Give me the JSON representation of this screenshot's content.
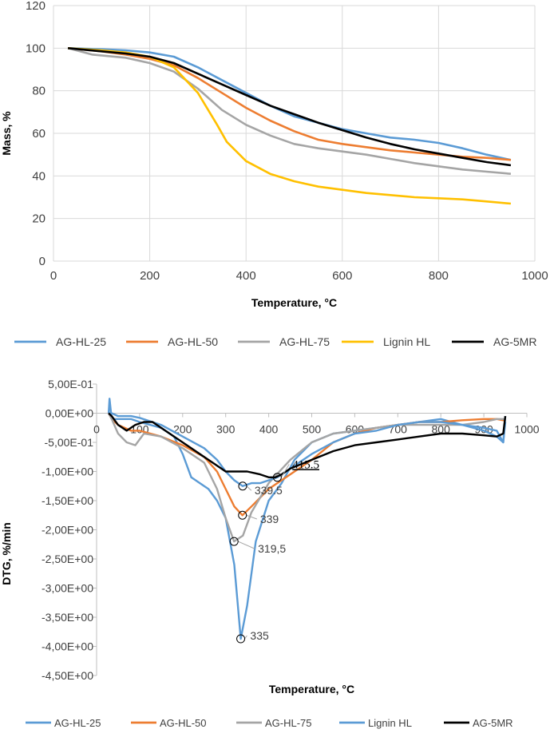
{
  "chart_data": [
    {
      "type": "line",
      "xlabel": "Temperature, °C",
      "ylabel": "Mass, %",
      "xlim": [
        0,
        1000
      ],
      "ylim": [
        0,
        120
      ],
      "x_ticks": [
        "0",
        "200",
        "400",
        "600",
        "800",
        "1000"
      ],
      "y_ticks": [
        "0",
        "20",
        "40",
        "60",
        "80",
        "100",
        "120"
      ],
      "grid": true,
      "legend_position": "bottom",
      "series": [
        {
          "name": "AG-HL-25",
          "color": "#5B9BD5",
          "x": [
            30,
            100,
            150,
            200,
            250,
            300,
            350,
            400,
            450,
            500,
            550,
            600,
            650,
            700,
            750,
            800,
            850,
            900,
            950
          ],
          "y": [
            100,
            99.5,
            99,
            98,
            96,
            91,
            85,
            79,
            73,
            68,
            65,
            62,
            60,
            58,
            57,
            55.5,
            53,
            50,
            47.5
          ]
        },
        {
          "name": "AG-HL-50",
          "color": "#ED7D31",
          "x": [
            30,
            100,
            150,
            200,
            250,
            300,
            350,
            400,
            450,
            500,
            550,
            600,
            650,
            700,
            750,
            800,
            850,
            900,
            950
          ],
          "y": [
            100,
            98.5,
            97,
            95,
            92,
            86,
            79,
            72,
            66,
            61,
            57,
            55,
            53.5,
            52,
            51,
            50,
            49,
            48.5,
            47.5
          ]
        },
        {
          "name": "AG-HL-75",
          "color": "#A5A5A5",
          "x": [
            30,
            80,
            150,
            200,
            250,
            300,
            350,
            400,
            450,
            500,
            550,
            600,
            650,
            700,
            750,
            800,
            850,
            900,
            950
          ],
          "y": [
            100,
            97,
            95.5,
            93,
            89,
            81,
            71,
            64,
            59,
            55,
            53,
            51.5,
            50,
            48,
            46,
            44.5,
            43,
            42,
            41
          ]
        },
        {
          "name": "Lignin HL",
          "color": "#FFC000",
          "x": [
            30,
            100,
            150,
            200,
            250,
            300,
            340,
            360,
            400,
            450,
            500,
            550,
            600,
            650,
            700,
            750,
            800,
            850,
            900,
            950
          ],
          "y": [
            100,
            99,
            98,
            96,
            91,
            79,
            64,
            56,
            47,
            41,
            37.5,
            35,
            33.5,
            32,
            31,
            30,
            29.5,
            29,
            28,
            27
          ]
        },
        {
          "name": "AG-5MR",
          "color": "#000000",
          "x": [
            30,
            100,
            150,
            200,
            250,
            300,
            350,
            400,
            450,
            500,
            550,
            600,
            650,
            700,
            750,
            800,
            850,
            900,
            950
          ],
          "y": [
            100,
            98.5,
            97.5,
            96,
            93,
            88,
            83,
            78,
            73,
            69,
            65,
            61.5,
            58,
            55,
            52.5,
            50.5,
            48.5,
            46.5,
            45
          ]
        }
      ]
    },
    {
      "type": "line",
      "xlabel": "Temperature, °C",
      "ylabel": "DTG, %/min",
      "xlim": [
        0,
        1000
      ],
      "ylim": [
        -4.5,
        0.5
      ],
      "x_ticks": [
        "0",
        "100",
        "200",
        "300",
        "400",
        "500",
        "600",
        "700",
        "800",
        "900",
        "1000"
      ],
      "y_ticks": [
        "5,00E-01",
        "0,00E+00",
        "-5,00E-01",
        "-1,00E+00",
        "-1,50E+00",
        "-2,00E+00",
        "-2,50E+00",
        "-3,00E+00",
        "-3,50E+00",
        "-4,00E+00",
        "-4,50E+00"
      ],
      "grid": false,
      "legend_position": "bottom",
      "annotations": [
        {
          "text": "415.5",
          "x": 420,
          "y": -1.1
        },
        {
          "text": "339.5",
          "x": 339.5,
          "y": -1.25
        },
        {
          "text": "339",
          "x": 339,
          "y": -1.75
        },
        {
          "text": "319,5",
          "x": 319.5,
          "y": -2.2
        },
        {
          "text": "335",
          "x": 335,
          "y": -3.87
        }
      ],
      "series": [
        {
          "name": "AG-HL-25",
          "color": "#5B9BD5",
          "x": [
            28,
            30,
            35,
            50,
            80,
            100,
            150,
            180,
            200,
            220,
            240,
            260,
            280,
            300,
            320,
            335,
            350,
            370,
            400,
            430,
            460,
            500,
            550,
            600,
            650,
            700,
            750,
            800,
            850,
            900,
            930,
            945,
            950
          ],
          "y": [
            0.0,
            0.25,
            -0.1,
            -0.1,
            -0.1,
            -0.15,
            -0.25,
            -0.4,
            -0.7,
            -1.1,
            -1.2,
            -1.3,
            -1.5,
            -1.8,
            -2.6,
            -3.87,
            -3.3,
            -2.2,
            -1.5,
            -1.2,
            -0.8,
            -0.5,
            -0.35,
            -0.3,
            -0.25,
            -0.2,
            -0.15,
            -0.1,
            -0.2,
            -0.3,
            -0.4,
            -0.5,
            -0.15
          ]
        },
        {
          "name": "AG-HL-50",
          "color": "#ED7D31",
          "x": [
            28,
            35,
            50,
            80,
            100,
            150,
            200,
            250,
            280,
            300,
            320,
            339,
            360,
            400,
            450,
            500,
            550,
            600,
            650,
            700,
            750,
            800,
            850,
            900,
            930,
            945,
            950
          ],
          "y": [
            0.0,
            -0.1,
            -0.2,
            -0.3,
            -0.3,
            -0.4,
            -0.55,
            -0.75,
            -1.0,
            -1.3,
            -1.6,
            -1.75,
            -1.6,
            -1.3,
            -1.05,
            -0.8,
            -0.5,
            -0.35,
            -0.25,
            -0.2,
            -0.15,
            -0.15,
            -0.12,
            -0.1,
            -0.1,
            -0.12,
            -0.1
          ]
        },
        {
          "name": "AG-HL-75",
          "color": "#A5A5A5",
          "x": [
            28,
            35,
            50,
            70,
            90,
            110,
            150,
            200,
            250,
            280,
            300,
            319.5,
            340,
            360,
            400,
            450,
            500,
            550,
            600,
            650,
            700,
            750,
            800,
            850,
            900,
            930,
            945,
            950
          ],
          "y": [
            0.0,
            -0.1,
            -0.35,
            -0.5,
            -0.55,
            -0.35,
            -0.4,
            -0.6,
            -0.85,
            -1.3,
            -1.8,
            -2.2,
            -2.1,
            -1.7,
            -1.2,
            -0.8,
            -0.5,
            -0.35,
            -0.3,
            -0.25,
            -0.2,
            -0.2,
            -0.2,
            -0.2,
            -0.15,
            -0.1,
            -0.1,
            -0.1
          ]
        },
        {
          "name": "Lignin HL",
          "color": "#5B9BD5",
          "x": [
            28,
            35,
            50,
            80,
            100,
            150,
            200,
            250,
            280,
            300,
            320,
            339.5,
            360,
            380,
            400,
            420,
            450,
            500,
            550,
            600,
            650,
            700,
            750,
            800,
            850,
            900,
            930,
            945,
            950
          ],
          "y": [
            0.0,
            0.0,
            -0.05,
            -0.05,
            -0.08,
            -0.2,
            -0.4,
            -0.6,
            -0.8,
            -1.0,
            -1.15,
            -1.25,
            -1.2,
            -1.2,
            -1.15,
            -1.1,
            -0.95,
            -0.7,
            -0.5,
            -0.35,
            -0.3,
            -0.2,
            -0.15,
            -0.15,
            -0.2,
            -0.25,
            -0.3,
            -0.5,
            -0.05
          ]
        },
        {
          "name": "AG-5MR",
          "color": "#000000",
          "x": [
            28,
            35,
            50,
            70,
            90,
            110,
            130,
            150,
            200,
            250,
            300,
            350,
            380,
            400,
            415.5,
            430,
            450,
            500,
            550,
            600,
            650,
            700,
            750,
            800,
            850,
            900,
            930,
            945,
            950
          ],
          "y": [
            0.0,
            -0.05,
            -0.2,
            -0.3,
            -0.2,
            -0.15,
            -0.15,
            -0.25,
            -0.5,
            -0.75,
            -1.0,
            -1.0,
            -1.05,
            -1.1,
            -1.1,
            -1.05,
            -0.95,
            -0.8,
            -0.65,
            -0.55,
            -0.5,
            -0.45,
            -0.4,
            -0.35,
            -0.35,
            -0.38,
            -0.4,
            -0.35,
            -0.05
          ]
        }
      ]
    }
  ]
}
